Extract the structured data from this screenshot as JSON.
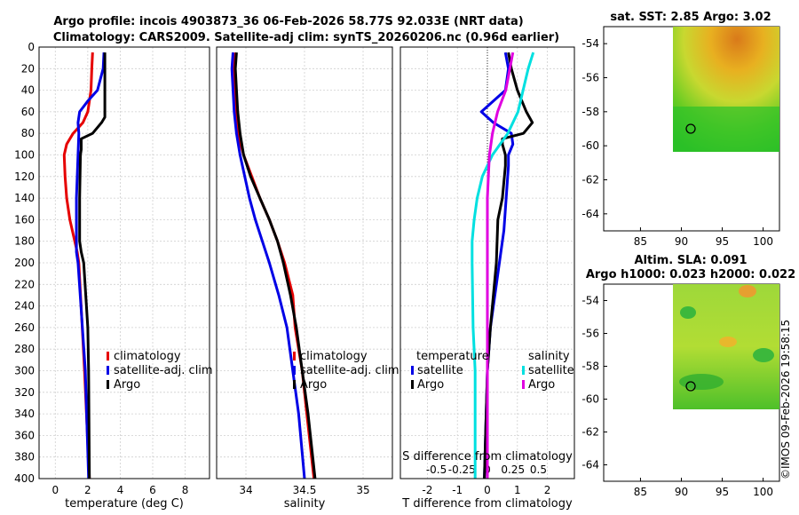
{
  "title": {
    "line1": "Argo profile: incois 4903873_36 06-Feb-2026 58.77S 92.033E (NRT data)",
    "line2": "Climatology: CARS2009. Satellite-adj clim: synTS_20260206.nc (0.96d earlier)"
  },
  "copyright": "©IMOS 09-Feb-2026 19:58:15",
  "colors": {
    "climatology": "#e60000",
    "satellite": "#0000e6",
    "argo": "#000000",
    "sal_satellite": "#00e0e0",
    "sal_argo": "#e000e0"
  },
  "chart_data": [
    {
      "type": "line",
      "name": "temperature",
      "xlabel": "temperature (deg C)",
      "ylabel": "",
      "xlim": [
        -1,
        9.5
      ],
      "xticks": [
        "0",
        "2",
        "4",
        "6",
        "8"
      ],
      "ylim": [
        0,
        400
      ],
      "yticks": [
        "0",
        "20",
        "40",
        "60",
        "80",
        "100",
        "120",
        "140",
        "160",
        "180",
        "200",
        "220",
        "240",
        "260",
        "280",
        "300",
        "320",
        "340",
        "360",
        "380",
        "400"
      ],
      "legend": [
        "climatology",
        "satellite-adj. clim",
        "Argo"
      ],
      "series": [
        {
          "name": "climatology",
          "depth": [
            5,
            20,
            40,
            60,
            70,
            80,
            90,
            100,
            120,
            140,
            160,
            180,
            190,
            200,
            300,
            400
          ],
          "values": [
            2.3,
            2.25,
            2.2,
            2.0,
            1.7,
            1.1,
            0.7,
            0.55,
            0.6,
            0.7,
            0.9,
            1.2,
            1.35,
            1.45,
            1.8,
            2.1
          ]
        },
        {
          "name": "satellite-adj. clim",
          "depth": [
            5,
            20,
            40,
            50,
            60,
            70,
            80,
            100,
            120,
            140,
            160,
            180,
            190,
            200,
            300,
            400
          ],
          "values": [
            3.0,
            2.95,
            2.6,
            2.0,
            1.5,
            1.4,
            1.45,
            1.4,
            1.35,
            1.3,
            1.3,
            1.3,
            1.3,
            1.4,
            1.85,
            2.05
          ]
        },
        {
          "name": "Argo",
          "depth": [
            5,
            20,
            40,
            65,
            70,
            80,
            85,
            90,
            95,
            100,
            140,
            180,
            190,
            200,
            260,
            300,
            400
          ],
          "values": [
            3.05,
            3.05,
            3.05,
            3.05,
            2.85,
            2.3,
            1.6,
            1.6,
            1.6,
            1.55,
            1.5,
            1.5,
            1.6,
            1.75,
            2.0,
            2.05,
            2.1
          ]
        }
      ]
    },
    {
      "type": "line",
      "name": "salinity",
      "xlabel": "salinity",
      "ylabel": "",
      "xlim": [
        33.75,
        35.25
      ],
      "xticks": [
        "34",
        "34.5",
        "35"
      ],
      "ylim": [
        0,
        400
      ],
      "legend": [
        "climatology",
        "satellite-adj. clim",
        "Argo"
      ],
      "series": [
        {
          "name": "climatology",
          "depth": [
            5,
            20,
            40,
            60,
            80,
            100,
            120,
            140,
            160,
            180,
            200,
            230,
            260,
            300,
            340,
            400
          ],
          "values": [
            33.9,
            33.89,
            33.9,
            33.91,
            33.93,
            33.98,
            34.05,
            34.12,
            34.2,
            34.27,
            34.33,
            34.4,
            34.42,
            34.48,
            34.52,
            34.58
          ]
        },
        {
          "name": "satellite-adj. clim",
          "depth": [
            5,
            20,
            40,
            60,
            80,
            100,
            120,
            140,
            160,
            180,
            200,
            230,
            260,
            300,
            340,
            400
          ],
          "values": [
            33.89,
            33.88,
            33.89,
            33.9,
            33.92,
            33.95,
            33.99,
            34.03,
            34.08,
            34.14,
            34.2,
            34.28,
            34.35,
            34.4,
            34.45,
            34.5
          ]
        },
        {
          "name": "Argo",
          "depth": [
            5,
            20,
            40,
            60,
            80,
            100,
            120,
            140,
            160,
            180,
            200,
            230,
            260,
            300,
            340,
            400
          ],
          "values": [
            33.92,
            33.91,
            33.92,
            33.93,
            33.95,
            33.98,
            34.04,
            34.12,
            34.2,
            34.27,
            34.32,
            34.38,
            34.43,
            34.48,
            34.53,
            34.59
          ]
        }
      ]
    },
    {
      "type": "line",
      "name": "difference from climatology",
      "xlabel": "T difference from climatology",
      "xlabel2": "S difference from climatology",
      "xlim": [
        -2.9,
        2.9
      ],
      "xticks": [
        "-2",
        "-1",
        "0",
        "1",
        "2"
      ],
      "xticks2": [
        "-0.5",
        "-0.25",
        "0",
        "0.25",
        "0.5"
      ],
      "ylim": [
        0,
        400
      ],
      "legend": [
        "temperature",
        "satellite",
        "Argo",
        "salinity",
        "satellite",
        "Argo"
      ],
      "series": [
        {
          "name": "temperature satellite",
          "depth": [
            5,
            20,
            40,
            60,
            70,
            80,
            90,
            100,
            110,
            130,
            150,
            170,
            200,
            260,
            300,
            400
          ],
          "values": [
            0.6,
            0.7,
            0.6,
            -0.2,
            0.2,
            0.8,
            0.85,
            0.7,
            0.7,
            0.65,
            0.6,
            0.55,
            0.4,
            0.1,
            0.0,
            -0.1
          ]
        },
        {
          "name": "temperature Argo",
          "depth": [
            5,
            20,
            40,
            60,
            70,
            80,
            85,
            90,
            100,
            110,
            140,
            160,
            200,
            260,
            300,
            400
          ],
          "values": [
            0.7,
            0.8,
            1.0,
            1.3,
            1.5,
            1.2,
            0.5,
            0.5,
            0.6,
            0.6,
            0.5,
            0.35,
            0.3,
            0.1,
            0.0,
            -0.1
          ]
        },
        {
          "name": "salinity satellite",
          "depth": [
            5,
            20,
            40,
            60,
            80,
            100,
            120,
            140,
            160,
            180,
            200,
            260,
            300,
            400
          ],
          "values": [
            0.45,
            0.4,
            0.35,
            0.3,
            0.2,
            0.05,
            -0.05,
            -0.1,
            -0.13,
            -0.15,
            -0.15,
            -0.14,
            -0.12,
            -0.12
          ]
        },
        {
          "name": "salinity Argo",
          "depth": [
            5,
            20,
            40,
            60,
            80,
            100,
            120,
            140,
            160,
            180,
            200,
            260,
            300,
            400
          ],
          "values": [
            0.25,
            0.22,
            0.18,
            0.1,
            0.05,
            0.02,
            0.01,
            0.0,
            0.0,
            0.0,
            0.0,
            0.0,
            0.0,
            0.0
          ]
        }
      ]
    },
    {
      "type": "heatmap",
      "name": "sst map",
      "title": "sat. SST: 2.85 Argo: 3.02",
      "xticks": [
        "85",
        "90",
        "95",
        "100"
      ],
      "yticks": [
        "-54",
        "-56",
        "-58",
        "-60",
        "-62",
        "-64"
      ],
      "xlim": [
        80.5,
        102
      ],
      "ylim": [
        -65,
        -53
      ],
      "argo_position": [
        92.03,
        -58.77
      ]
    },
    {
      "type": "heatmap",
      "name": "sla map",
      "title": "Altim. SLA: 0.091",
      "title2": "Argo h1000: 0.023 h2000: 0.022",
      "xticks": [
        "85",
        "90",
        "95",
        "100"
      ],
      "yticks": [
        "-54",
        "-56",
        "-58",
        "-60",
        "-62",
        "-64"
      ],
      "xlim": [
        80.5,
        102
      ],
      "ylim": [
        -65,
        -53
      ],
      "argo_position": [
        92.03,
        -58.77
      ]
    }
  ]
}
